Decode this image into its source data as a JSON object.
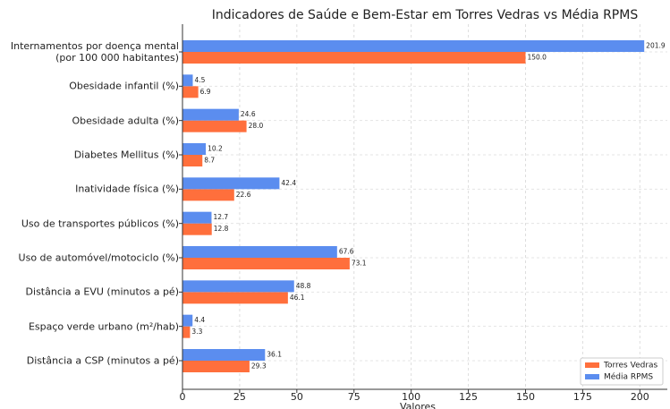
{
  "chart_data": {
    "type": "hbar",
    "title": "Indicadores de Saúde e Bem-Estar em Torres Vedras vs Média RPMS",
    "x_label": "Valores",
    "categories": [
      "Internamentos por doença mental\n(por 100 000 habitantes)",
      "Obesidade infantil (%)",
      "Obesidade adulta (%)",
      "Diabetes Mellitus (%)",
      "Inatividade física (%)",
      "Uso de transportes públicos (%)",
      "Uso de automóvel/motociclo (%)",
      "Distância a EVU (minutos a pé)",
      "Espaço verde urbano (m²/hab)",
      "Distância a CSP (minutos a pé)"
    ],
    "series": [
      {
        "name": "Torres Vedras",
        "color": "#ff6f3c",
        "values": [
          150.0,
          6.9,
          28.0,
          8.7,
          22.6,
          12.8,
          73.1,
          46.1,
          3.3,
          29.3
        ],
        "value_labels": [
          "150.0",
          "6.9",
          "28.0",
          "8.7",
          "22.6",
          "12.8",
          "73.1",
          "46.1",
          "3.3",
          "29.3"
        ]
      },
      {
        "name": "Média RPMS",
        "color": "#5b8def",
        "values": [
          201.9,
          4.5,
          24.6,
          10.2,
          42.4,
          12.7,
          67.6,
          48.8,
          4.4,
          36.1
        ],
        "value_labels": [
          "201.9",
          "4.5",
          "24.6",
          "10.2",
          "42.4",
          "12.7",
          "67.6",
          "48.8",
          "4.4",
          "36.1"
        ]
      }
    ],
    "xlim": [
      0,
      212
    ],
    "xticks": [
      0,
      25,
      50,
      75,
      100,
      125,
      150,
      175,
      200
    ],
    "grid": true,
    "legend": "lower right"
  }
}
